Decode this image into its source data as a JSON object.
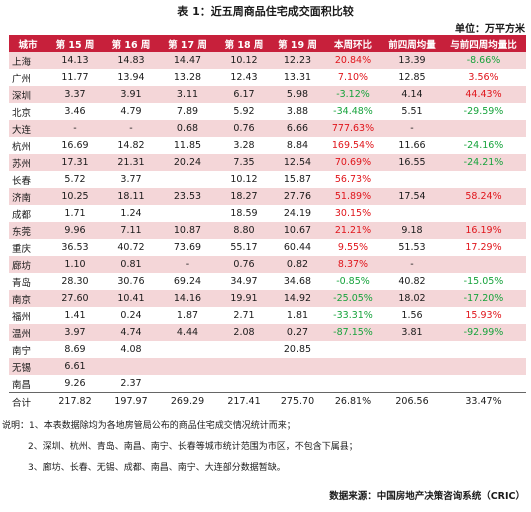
{
  "title": "表 1：近五周商品住宅成交面积比较",
  "unit": "单位：万平方米",
  "headers": [
    "城市",
    "第 15 周",
    "第 16 周",
    "第 17 周",
    "第 18 周",
    "第 19 周",
    "本周环比",
    "前四周均量",
    "与前四周均量比"
  ],
  "rows": [
    {
      "city": "上海",
      "w15": "14.13",
      "w16": "14.83",
      "w17": "14.47",
      "w18": "10.12",
      "w19": "12.23",
      "wow": "20.84%",
      "avg4": "13.39",
      "vs4": "-8.66%"
    },
    {
      "city": "广州",
      "w15": "11.77",
      "w16": "13.94",
      "w17": "13.28",
      "w18": "12.43",
      "w19": "13.31",
      "wow": "7.10%",
      "avg4": "12.85",
      "vs4": "3.56%"
    },
    {
      "city": "深圳",
      "w15": "3.37",
      "w16": "3.91",
      "w17": "3.11",
      "w18": "6.17",
      "w19": "5.98",
      "wow": "-3.12%",
      "avg4": "4.14",
      "vs4": "44.43%"
    },
    {
      "city": "北京",
      "w15": "3.46",
      "w16": "4.79",
      "w17": "7.89",
      "w18": "5.92",
      "w19": "3.88",
      "wow": "-34.48%",
      "avg4": "5.51",
      "vs4": "-29.59%"
    },
    {
      "city": "大连",
      "w15": "-",
      "w16": "-",
      "w17": "0.68",
      "w18": "0.76",
      "w19": "6.66",
      "wow": "777.63%",
      "avg4": "-",
      "vs4": ""
    },
    {
      "city": "杭州",
      "w15": "16.69",
      "w16": "14.82",
      "w17": "11.85",
      "w18": "3.28",
      "w19": "8.84",
      "wow": "169.54%",
      "avg4": "11.66",
      "vs4": "-24.16%"
    },
    {
      "city": "苏州",
      "w15": "17.31",
      "w16": "21.31",
      "w17": "20.24",
      "w18": "7.35",
      "w19": "12.54",
      "wow": "70.69%",
      "avg4": "16.55",
      "vs4": "-24.21%"
    },
    {
      "city": "长春",
      "w15": "5.72",
      "w16": "3.77",
      "w17": "",
      "w18": "10.12",
      "w19": "15.87",
      "wow": "56.73%",
      "avg4": "",
      "vs4": ""
    },
    {
      "city": "济南",
      "w15": "10.25",
      "w16": "18.11",
      "w17": "23.53",
      "w18": "18.27",
      "w19": "27.76",
      "wow": "51.89%",
      "avg4": "17.54",
      "vs4": "58.24%"
    },
    {
      "city": "成都",
      "w15": "1.71",
      "w16": "1.24",
      "w17": "",
      "w18": "18.59",
      "w19": "24.19",
      "wow": "30.15%",
      "avg4": "",
      "vs4": ""
    },
    {
      "city": "东莞",
      "w15": "9.96",
      "w16": "7.11",
      "w17": "10.87",
      "w18": "8.80",
      "w19": "10.67",
      "wow": "21.21%",
      "avg4": "9.18",
      "vs4": "16.19%"
    },
    {
      "city": "重庆",
      "w15": "36.53",
      "w16": "40.72",
      "w17": "73.69",
      "w18": "55.17",
      "w19": "60.44",
      "wow": "9.55%",
      "avg4": "51.53",
      "vs4": "17.29%"
    },
    {
      "city": "廊坊",
      "w15": "1.10",
      "w16": "0.81",
      "w17": "-",
      "w18": "0.76",
      "w19": "0.82",
      "wow": "8.37%",
      "avg4": "-",
      "vs4": ""
    },
    {
      "city": "青岛",
      "w15": "28.30",
      "w16": "30.76",
      "w17": "69.24",
      "w18": "34.97",
      "w19": "34.68",
      "wow": "-0.85%",
      "avg4": "40.82",
      "vs4": "-15.05%"
    },
    {
      "city": "南京",
      "w15": "27.60",
      "w16": "10.41",
      "w17": "14.16",
      "w18": "19.91",
      "w19": "14.92",
      "wow": "-25.05%",
      "avg4": "18.02",
      "vs4": "-17.20%"
    },
    {
      "city": "福州",
      "w15": "1.41",
      "w16": "0.24",
      "w17": "1.87",
      "w18": "2.71",
      "w19": "1.81",
      "wow": "-33.31%",
      "avg4": "1.56",
      "vs4": "15.93%"
    },
    {
      "city": "温州",
      "w15": "3.97",
      "w16": "4.74",
      "w17": "4.44",
      "w18": "2.08",
      "w19": "0.27",
      "wow": "-87.15%",
      "avg4": "3.81",
      "vs4": "-92.99%"
    },
    {
      "city": "南宁",
      "w15": "8.69",
      "w16": "4.08",
      "w17": "",
      "w18": "",
      "w19": "20.85",
      "wow": "",
      "avg4": "",
      "vs4": ""
    },
    {
      "city": "无锡",
      "w15": "6.61",
      "w16": "",
      "w17": "",
      "w18": "",
      "w19": "",
      "wow": "",
      "avg4": "",
      "vs4": ""
    },
    {
      "city": "南昌",
      "w15": "9.26",
      "w16": "2.37",
      "w17": "",
      "w18": "",
      "w19": "",
      "wow": "",
      "avg4": "",
      "vs4": ""
    }
  ],
  "total": {
    "city": "合计",
    "w15": "217.82",
    "w16": "197.97",
    "w17": "269.29",
    "w18": "217.41",
    "w19": "275.70",
    "wow": "26.81%",
    "avg4": "206.56",
    "vs4": "33.47%"
  },
  "notes": [
    "说明：1、本表数据除均为各地房管局公布的商品住宅成交情况统计而来；",
    "2、深圳、杭州、青岛、南昌、南宁、长春等城市统计范围为市区，不包含下属县；",
    "3、廊坊、长春、无锡、成都、南昌、南宁、大连部分数据暂缺。"
  ],
  "source": "数据来源：中国房地产决策咨询系统（CRIC）",
  "colors": {
    "header_bg": "#c7203b",
    "row_shade": "#f4d6d8",
    "up": "#e0151b",
    "down": "#17a33c"
  }
}
